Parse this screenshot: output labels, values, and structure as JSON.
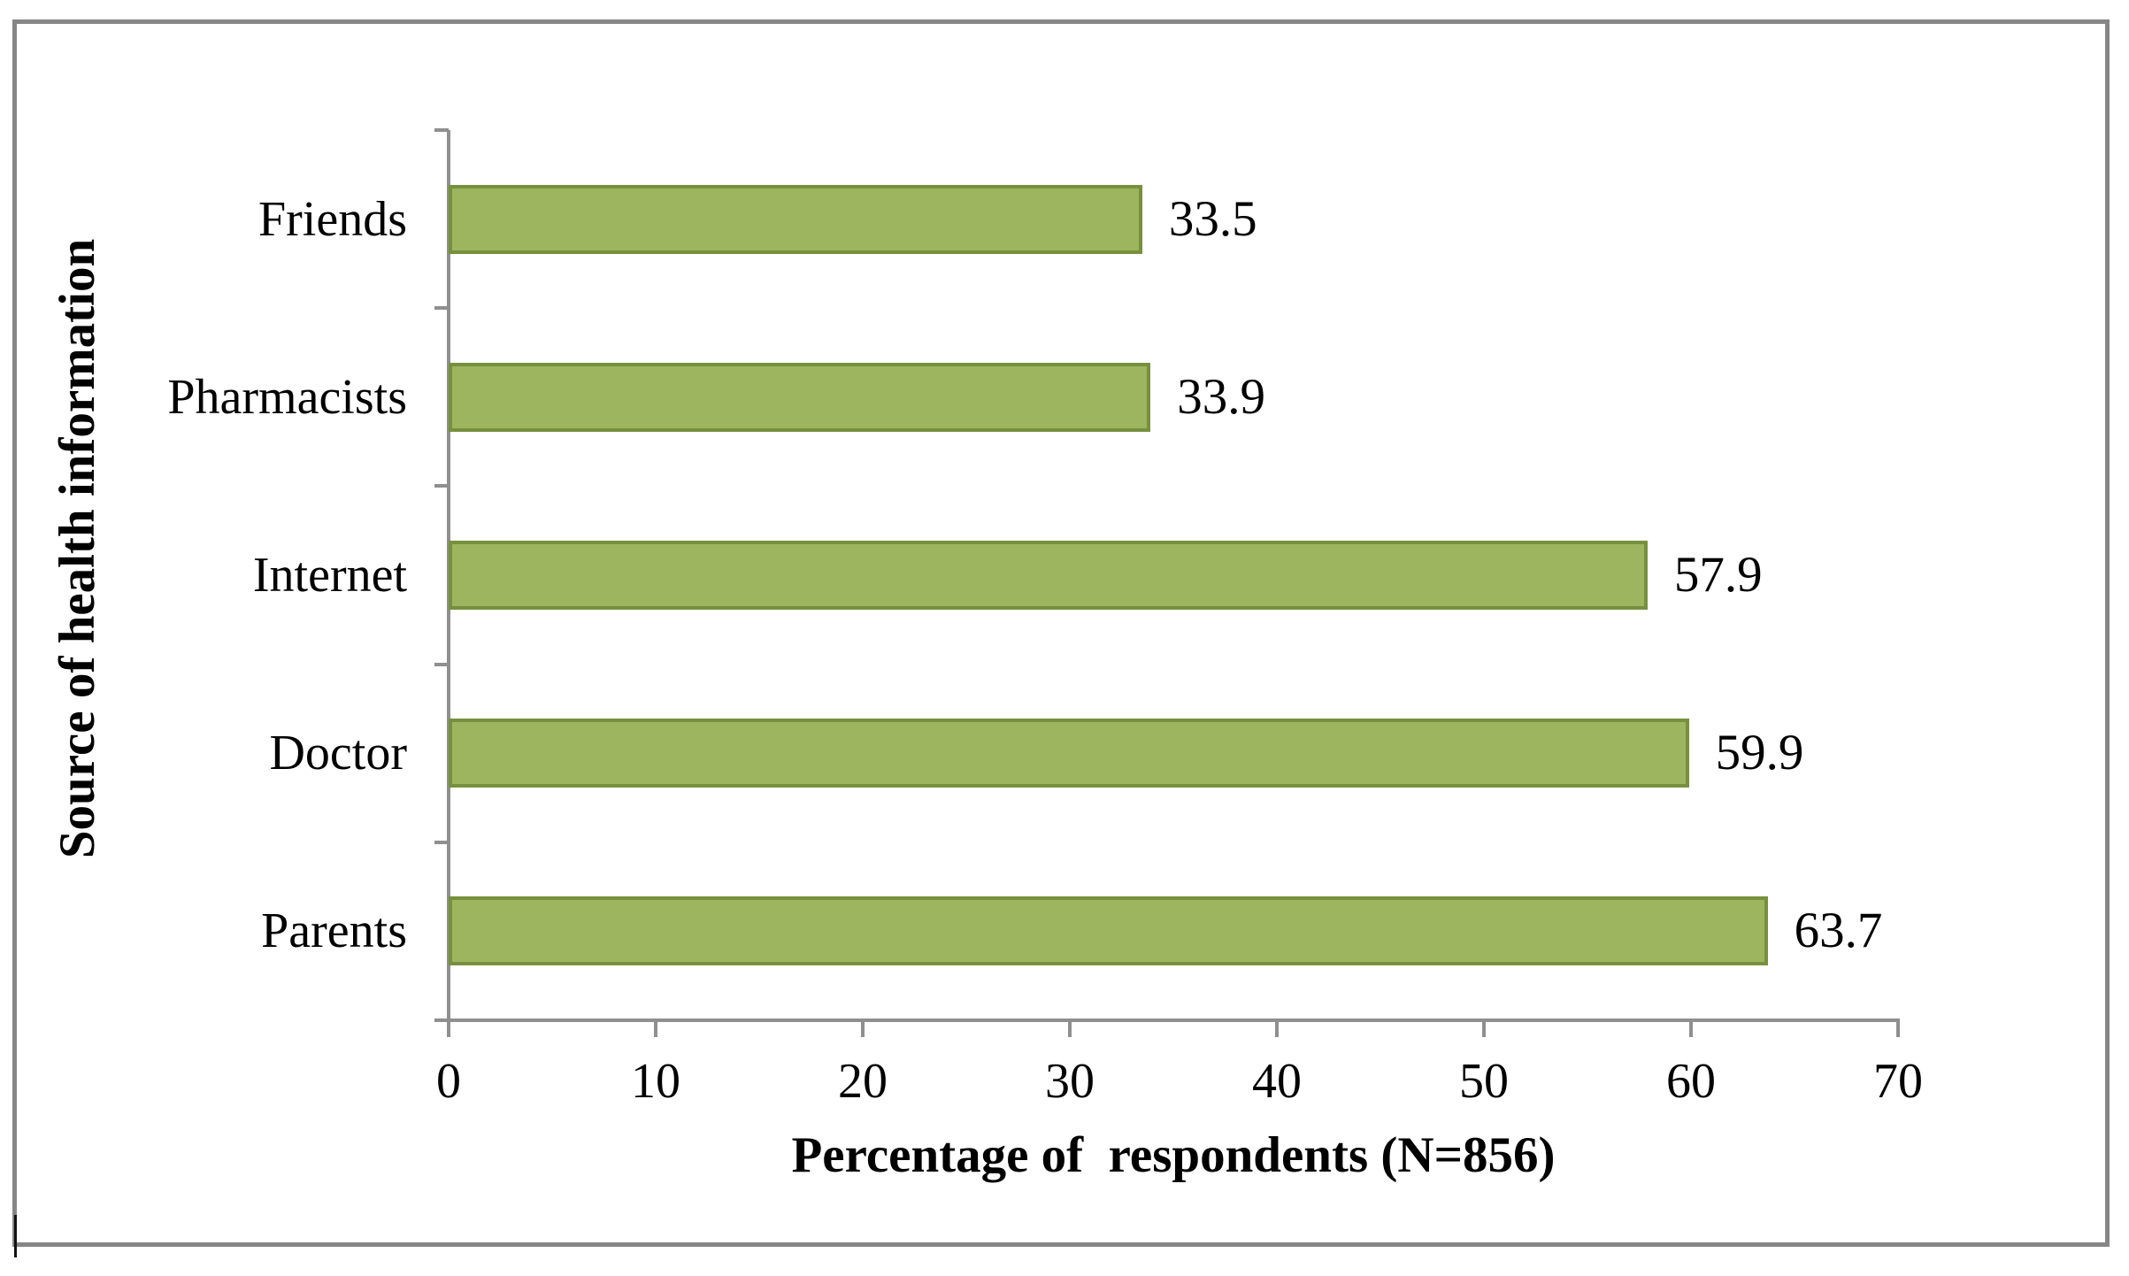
{
  "chart_data": {
    "type": "bar",
    "orientation": "horizontal",
    "categories": [
      "Friends",
      "Pharmacists",
      "Internet",
      "Doctor",
      "Parents"
    ],
    "values": [
      33.5,
      33.9,
      57.9,
      59.9,
      63.7
    ],
    "value_labels": [
      "33.5",
      "33.9",
      "57.9",
      "59.9",
      "63.7"
    ],
    "title": "",
    "xlabel": "Percentage of  respondents (N=856)",
    "ylabel": "Source of health information",
    "xlim": [
      0,
      70
    ],
    "x_ticks": [
      0,
      10,
      20,
      30,
      40,
      50,
      60,
      70
    ],
    "x_tick_labels": [
      "0",
      "10",
      "20",
      "30",
      "40",
      "50",
      "60",
      "70"
    ],
    "grid": false,
    "legend": false,
    "data_labels_position": "outside-end",
    "colors": {
      "bar_fill": "#9db55f",
      "bar_border": "#76903e",
      "axis": "#8f8f8f",
      "text": "#000000",
      "figure_border": "#868686",
      "background": "#ffffff"
    }
  }
}
